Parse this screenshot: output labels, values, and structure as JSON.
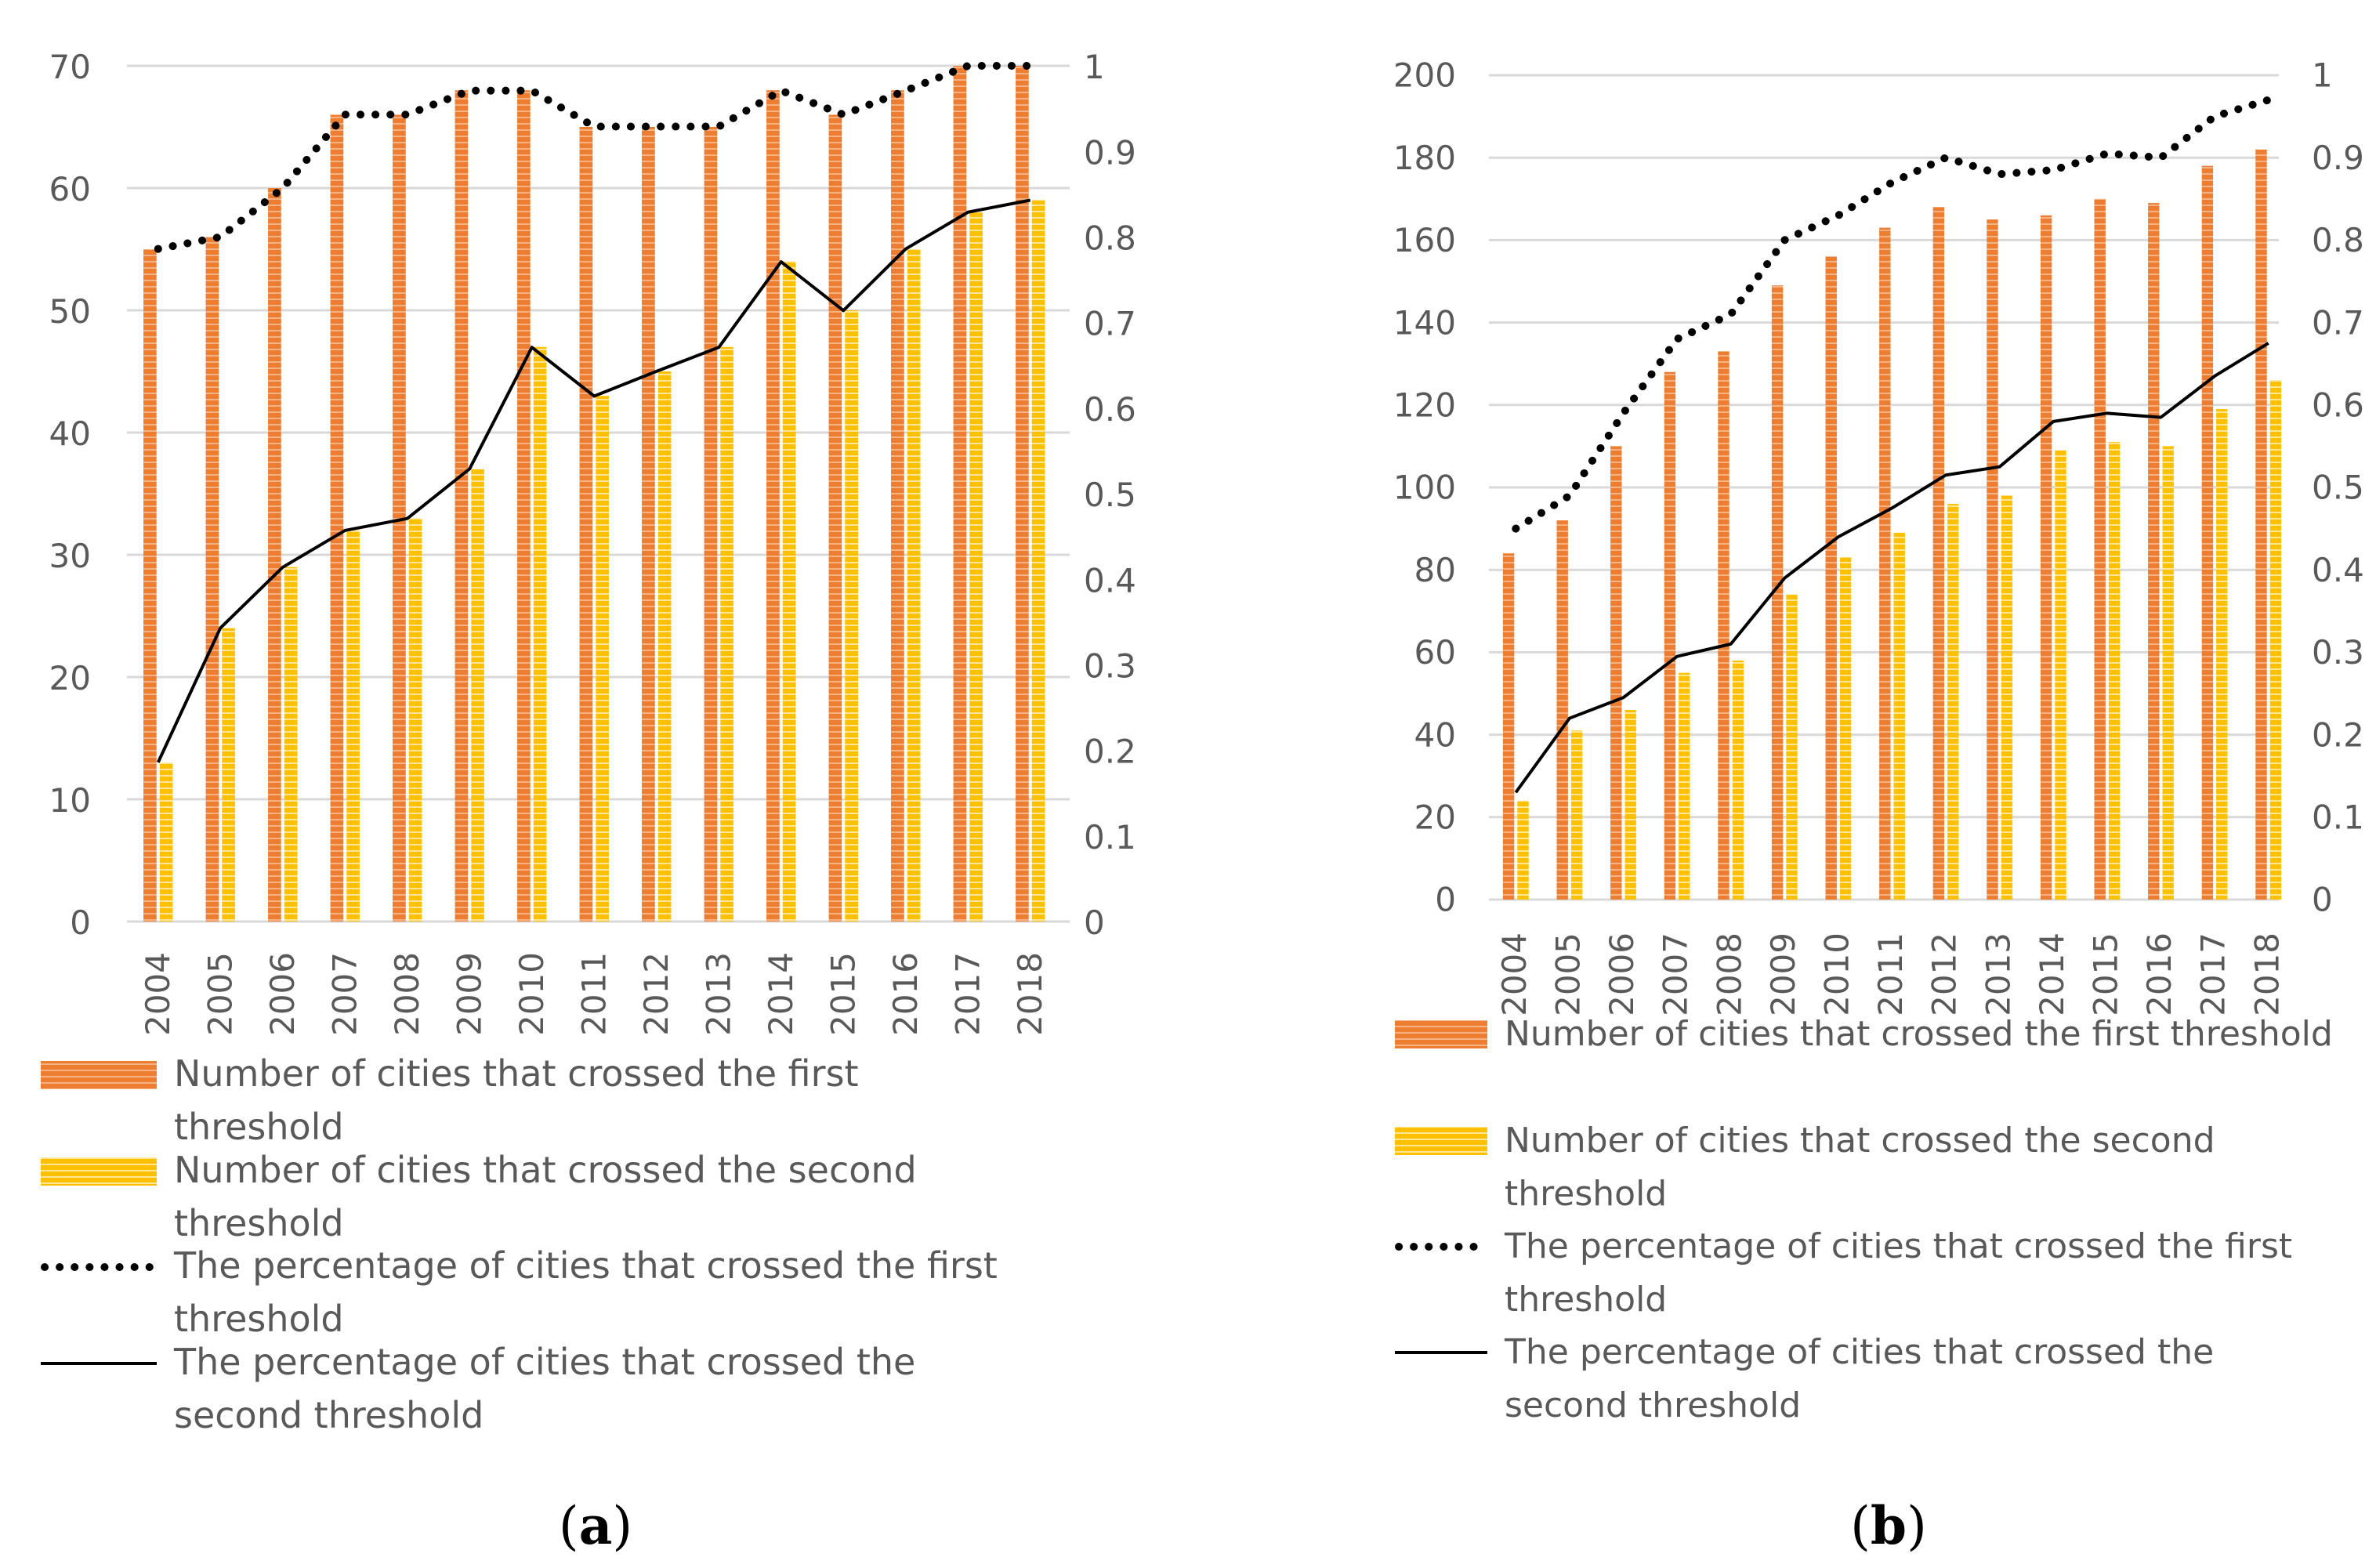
{
  "colors": {
    "first_bar": "#ED7D31",
    "first_bar_stripe": "#F4B183",
    "second_bar": "#FFC000",
    "second_bar_stripe": "#FFE699",
    "grid": "#D9D9D9",
    "line": "#000000"
  },
  "chart_data": [
    {
      "id": "a",
      "type": "bar",
      "panel_label": "a",
      "categories": [
        "2004",
        "2005",
        "2006",
        "2007",
        "2008",
        "2009",
        "2010",
        "2011",
        "2012",
        "2013",
        "2014",
        "2015",
        "2016",
        "2017",
        "2018"
      ],
      "series": [
        {
          "name": "Number of cities that crossed the first threshold",
          "kind": "bar",
          "axis": "left",
          "values": [
            55,
            56,
            60,
            66,
            66,
            68,
            68,
            65,
            65,
            65,
            68,
            66,
            68,
            70,
            70
          ]
        },
        {
          "name": "Number of cities that crossed the second threshold",
          "kind": "bar",
          "axis": "left",
          "values": [
            13,
            24,
            29,
            32,
            33,
            37,
            47,
            43,
            45,
            47,
            54,
            50,
            55,
            58,
            59
          ]
        },
        {
          "name": "The percentage of cities that crossed the first threshold",
          "kind": "line-dotted",
          "axis": "right",
          "values": [
            0.786,
            0.8,
            0.857,
            0.943,
            0.943,
            0.971,
            0.971,
            0.929,
            0.929,
            0.929,
            0.971,
            0.943,
            0.971,
            1.0,
            1.0
          ]
        },
        {
          "name": "The percentage of cities that crossed the second threshold",
          "kind": "line",
          "axis": "right",
          "values": [
            0.186,
            0.343,
            0.414,
            0.457,
            0.471,
            0.529,
            0.671,
            0.614,
            0.643,
            0.671,
            0.771,
            0.714,
            0.786,
            0.829,
            0.843
          ]
        }
      ],
      "left_axis": {
        "min": 0,
        "max": 70,
        "ticks": [
          "0",
          "10",
          "20",
          "30",
          "40",
          "50",
          "60",
          "70"
        ]
      },
      "right_axis": {
        "min": 0,
        "max": 1,
        "ticks": [
          "0",
          "0.1",
          "0.2",
          "0.3",
          "0.4",
          "0.5",
          "0.6",
          "0.7",
          "0.8",
          "0.9",
          "1"
        ]
      },
      "legend": [
        {
          "kind": "first_bar",
          "lines": [
            "Number of cities that crossed the first",
            "threshold"
          ]
        },
        {
          "kind": "second_bar",
          "lines": [
            "Number of cities that crossed the second",
            "threshold"
          ]
        },
        {
          "kind": "dotted",
          "lines": [
            "The percentage of cities that crossed the first",
            "threshold"
          ]
        },
        {
          "kind": "solid",
          "lines": [
            "The percentage of cities that crossed the",
            "second threshold"
          ]
        }
      ],
      "grid": true
    },
    {
      "id": "b",
      "type": "bar",
      "panel_label": "b",
      "categories": [
        "2004",
        "2005",
        "2006",
        "2007",
        "2008",
        "2009",
        "2010",
        "2011",
        "2012",
        "2013",
        "2014",
        "2015",
        "2016",
        "2017",
        "2018"
      ],
      "series": [
        {
          "name": "Number of cities that crossed the first threshold",
          "kind": "bar",
          "axis": "left",
          "values": [
            84,
            92,
            110,
            128,
            133,
            149,
            156,
            163,
            168,
            165,
            166,
            170,
            169,
            178,
            182
          ]
        },
        {
          "name": "Number of cities that crossed the second threshold",
          "kind": "bar",
          "axis": "left",
          "values": [
            24,
            41,
            46,
            55,
            58,
            74,
            83,
            89,
            96,
            98,
            109,
            111,
            110,
            119,
            126
          ]
        },
        {
          "name": "The percentage of cities that crossed the first threshold",
          "kind": "line-dotted",
          "axis": "right",
          "values": [
            0.45,
            0.49,
            0.59,
            0.68,
            0.71,
            0.8,
            0.83,
            0.87,
            0.9,
            0.88,
            0.885,
            0.905,
            0.9,
            0.95,
            0.97
          ]
        },
        {
          "name": "The percentage of cities that crossed the second threshold",
          "kind": "line",
          "axis": "right",
          "values": [
            0.13,
            0.22,
            0.245,
            0.295,
            0.31,
            0.39,
            0.44,
            0.475,
            0.515,
            0.525,
            0.58,
            0.59,
            0.585,
            0.635,
            0.675
          ]
        }
      ],
      "left_axis": {
        "min": 0,
        "max": 200,
        "ticks": [
          "0",
          "20",
          "40",
          "60",
          "80",
          "100",
          "120",
          "140",
          "160",
          "180",
          "200"
        ]
      },
      "right_axis": {
        "min": 0,
        "max": 1,
        "ticks": [
          "0",
          "0.1",
          "0.2",
          "0.3",
          "0.4",
          "0.5",
          "0.6",
          "0.7",
          "0.8",
          "0.9",
          "1"
        ]
      },
      "legend": [
        {
          "kind": "first_bar",
          "lines": [
            "Number of cities that crossed the first threshold"
          ]
        },
        {
          "kind": "second_bar",
          "lines": [
            "Number of cities that crossed the second",
            "threshold"
          ]
        },
        {
          "kind": "dotted",
          "lines": [
            "The percentage of cities that crossed the first",
            "threshold"
          ]
        },
        {
          "kind": "solid",
          "lines": [
            "The percentage of cities that crossed the",
            "second threshold"
          ]
        }
      ],
      "grid": true
    }
  ]
}
